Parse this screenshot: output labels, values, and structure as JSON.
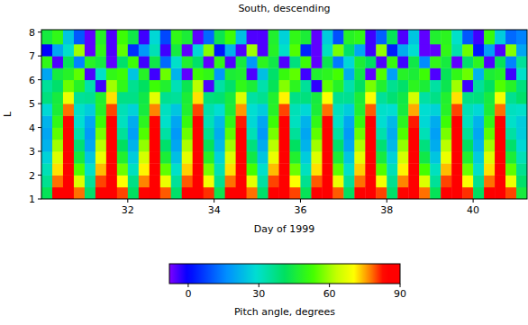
{
  "chart_data": {
    "type": "heatmap",
    "title": "South, descending",
    "x_label": "Day of 1999",
    "y_label": "L",
    "xlim": [
      30,
      41.25
    ],
    "ylim": [
      1,
      8.1
    ],
    "xticks": [
      32,
      34,
      36,
      38,
      40
    ],
    "yticks": [
      1,
      2,
      3,
      4,
      5,
      6,
      7,
      8
    ],
    "x_bins": [
      30,
      30.25,
      30.5,
      30.75,
      31,
      31.25,
      31.5,
      31.75,
      32,
      32.25,
      32.5,
      32.75,
      33,
      33.25,
      33.5,
      33.75,
      34,
      34.25,
      34.5,
      34.75,
      35,
      35.25,
      35.5,
      35.75,
      36,
      36.25,
      36.5,
      36.75,
      37,
      37.25,
      37.5,
      37.75,
      38,
      38.25,
      38.5,
      38.75,
      39,
      39.25,
      39.5,
      39.75,
      40,
      40.25,
      40.5,
      40.75,
      41,
      41.25
    ],
    "y_bins": [
      1,
      1.5,
      2,
      2.5,
      3,
      3.5,
      4,
      4.5,
      5,
      5.5,
      6,
      6.5,
      7,
      7.5,
      8.1
    ],
    "cells": [
      [
        42,
        84,
        89,
        78,
        40,
        85,
        89,
        80,
        41,
        83,
        89,
        79,
        40,
        86,
        89,
        81,
        43,
        84,
        89,
        78,
        40,
        85,
        89,
        80,
        42,
        84,
        89,
        79,
        41,
        85,
        89,
        80,
        40,
        83,
        89,
        78,
        42,
        86,
        89,
        81,
        41,
        84,
        89,
        80,
        45
      ],
      [
        36,
        78,
        88,
        66,
        35,
        80,
        88,
        70,
        37,
        77,
        88,
        68,
        35,
        79,
        88,
        69,
        36,
        78,
        88,
        67,
        34,
        80,
        88,
        70,
        36,
        79,
        88,
        68,
        35,
        78,
        88,
        69,
        36,
        77,
        88,
        66,
        35,
        80,
        88,
        70,
        36,
        78,
        88,
        68,
        40
      ],
      [
        32,
        72,
        88,
        54,
        30,
        74,
        88,
        56,
        31,
        71,
        88,
        55,
        30,
        73,
        88,
        57,
        32,
        72,
        88,
        53,
        30,
        74,
        88,
        56,
        31,
        72,
        88,
        55,
        30,
        73,
        88,
        54,
        32,
        71,
        88,
        53,
        31,
        74,
        88,
        56,
        30,
        72,
        88,
        55,
        36
      ],
      [
        27,
        66,
        87,
        45,
        25,
        68,
        87,
        47,
        26,
        65,
        87,
        46,
        24,
        67,
        87,
        48,
        27,
        66,
        87,
        44,
        25,
        68,
        87,
        47,
        26,
        66,
        87,
        46,
        25,
        67,
        87,
        45,
        27,
        65,
        87,
        44,
        25,
        68,
        87,
        47,
        26,
        66,
        87,
        46,
        32
      ],
      [
        22,
        60,
        86,
        39,
        20,
        62,
        86,
        41,
        22,
        59,
        86,
        40,
        20,
        61,
        86,
        42,
        23,
        60,
        86,
        38,
        21,
        62,
        86,
        41,
        22,
        60,
        86,
        40,
        20,
        61,
        86,
        39,
        23,
        59,
        86,
        38,
        21,
        62,
        86,
        41,
        22,
        60,
        86,
        40,
        28
      ],
      [
        20,
        55,
        85,
        33,
        18,
        57,
        85,
        35,
        19,
        54,
        85,
        34,
        18,
        56,
        85,
        36,
        21,
        55,
        85,
        32,
        18,
        57,
        85,
        35,
        20,
        55,
        85,
        34,
        18,
        56,
        85,
        33,
        21,
        54,
        85,
        32,
        19,
        57,
        85,
        35,
        20,
        55,
        85,
        34,
        26
      ],
      [
        22,
        50,
        83,
        29,
        20,
        52,
        84,
        31,
        21,
        49,
        83,
        30,
        20,
        51,
        84,
        32,
        23,
        50,
        82,
        28,
        20,
        52,
        84,
        31,
        22,
        50,
        83,
        30,
        20,
        51,
        84,
        29,
        23,
        49,
        82,
        28,
        21,
        52,
        84,
        31,
        22,
        50,
        83,
        30,
        26
      ],
      [
        28,
        46,
        78,
        30,
        26,
        48,
        80,
        32,
        27,
        45,
        77,
        31,
        25,
        47,
        80,
        33,
        29,
        46,
        76,
        29,
        26,
        48,
        80,
        32,
        28,
        46,
        78,
        31,
        26,
        47,
        79,
        30,
        29,
        45,
        75,
        29,
        27,
        48,
        80,
        32,
        28,
        46,
        78,
        31,
        30
      ],
      [
        38,
        45,
        68,
        35,
        36,
        47,
        72,
        37,
        37,
        44,
        67,
        36,
        35,
        46,
        72,
        38,
        39,
        45,
        66,
        34,
        36,
        47,
        71,
        37,
        38,
        45,
        70,
        36,
        36,
        46,
        70,
        35,
        39,
        44,
        65,
        34,
        37,
        47,
        72,
        37,
        38,
        45,
        69,
        36,
        40
      ],
      [
        35,
        40,
        56,
        48,
        33,
        -4,
        60,
        50,
        36,
        41,
        52,
        47,
        32,
        43,
        62,
        -5,
        34,
        40,
        50,
        46,
        33,
        42,
        58,
        49,
        35,
        -3,
        55,
        48,
        33,
        41,
        57,
        47,
        36,
        40,
        49,
        46,
        34,
        43,
        60,
        -4,
        35,
        41,
        54,
        48,
        38
      ],
      [
        20,
        45,
        48,
        55,
        -5,
        30,
        50,
        52,
        25,
        48,
        -4,
        56,
        22,
        -6,
        52,
        50,
        18,
        46,
        47,
        -5,
        24,
        40,
        51,
        55,
        -4,
        47,
        49,
        53,
        21,
        44,
        -6,
        54,
        19,
        48,
        46,
        52,
        -5,
        42,
        50,
        56,
        22,
        46,
        48,
        -4,
        30
      ],
      [
        50,
        -5,
        42,
        15,
        48,
        45,
        -6,
        40,
        52,
        -4,
        44,
        12,
        30,
        47,
        40,
        -6,
        50,
        -5,
        45,
        18,
        49,
        44,
        -5,
        38,
        52,
        -6,
        43,
        14,
        28,
        46,
        41,
        -5,
        51,
        -4,
        44,
        16,
        50,
        45,
        -6,
        40,
        49,
        -5,
        42,
        15,
        35
      ],
      [
        0,
        20,
        30,
        60,
        -6,
        50,
        -5,
        55,
        5,
        18,
        32,
        -4,
        45,
        -6,
        28,
        58,
        2,
        22,
        -5,
        60,
        -5,
        48,
        30,
        54,
        4,
        -6,
        31,
        57,
        40,
        20,
        -4,
        59,
        3,
        21,
        29,
        -6,
        -6,
        50,
        33,
        56,
        2,
        19,
        -5,
        58,
        20
      ],
      [
        45,
        50,
        25,
        10,
        -6,
        48,
        -5,
        52,
        44,
        -4,
        28,
        8,
        50,
        46,
        -6,
        12,
        43,
        52,
        24,
        -5,
        -5,
        47,
        27,
        50,
        46,
        -6,
        26,
        9,
        48,
        50,
        -4,
        11,
        42,
        -5,
        25,
        -6,
        47,
        49,
        30,
        10,
        -4,
        51,
        26,
        12,
        15
      ]
    ],
    "color_label": "Pitch angle, degrees",
    "clim": [
      -8,
      90
    ],
    "cticks": [
      0,
      30,
      60,
      90
    ]
  }
}
